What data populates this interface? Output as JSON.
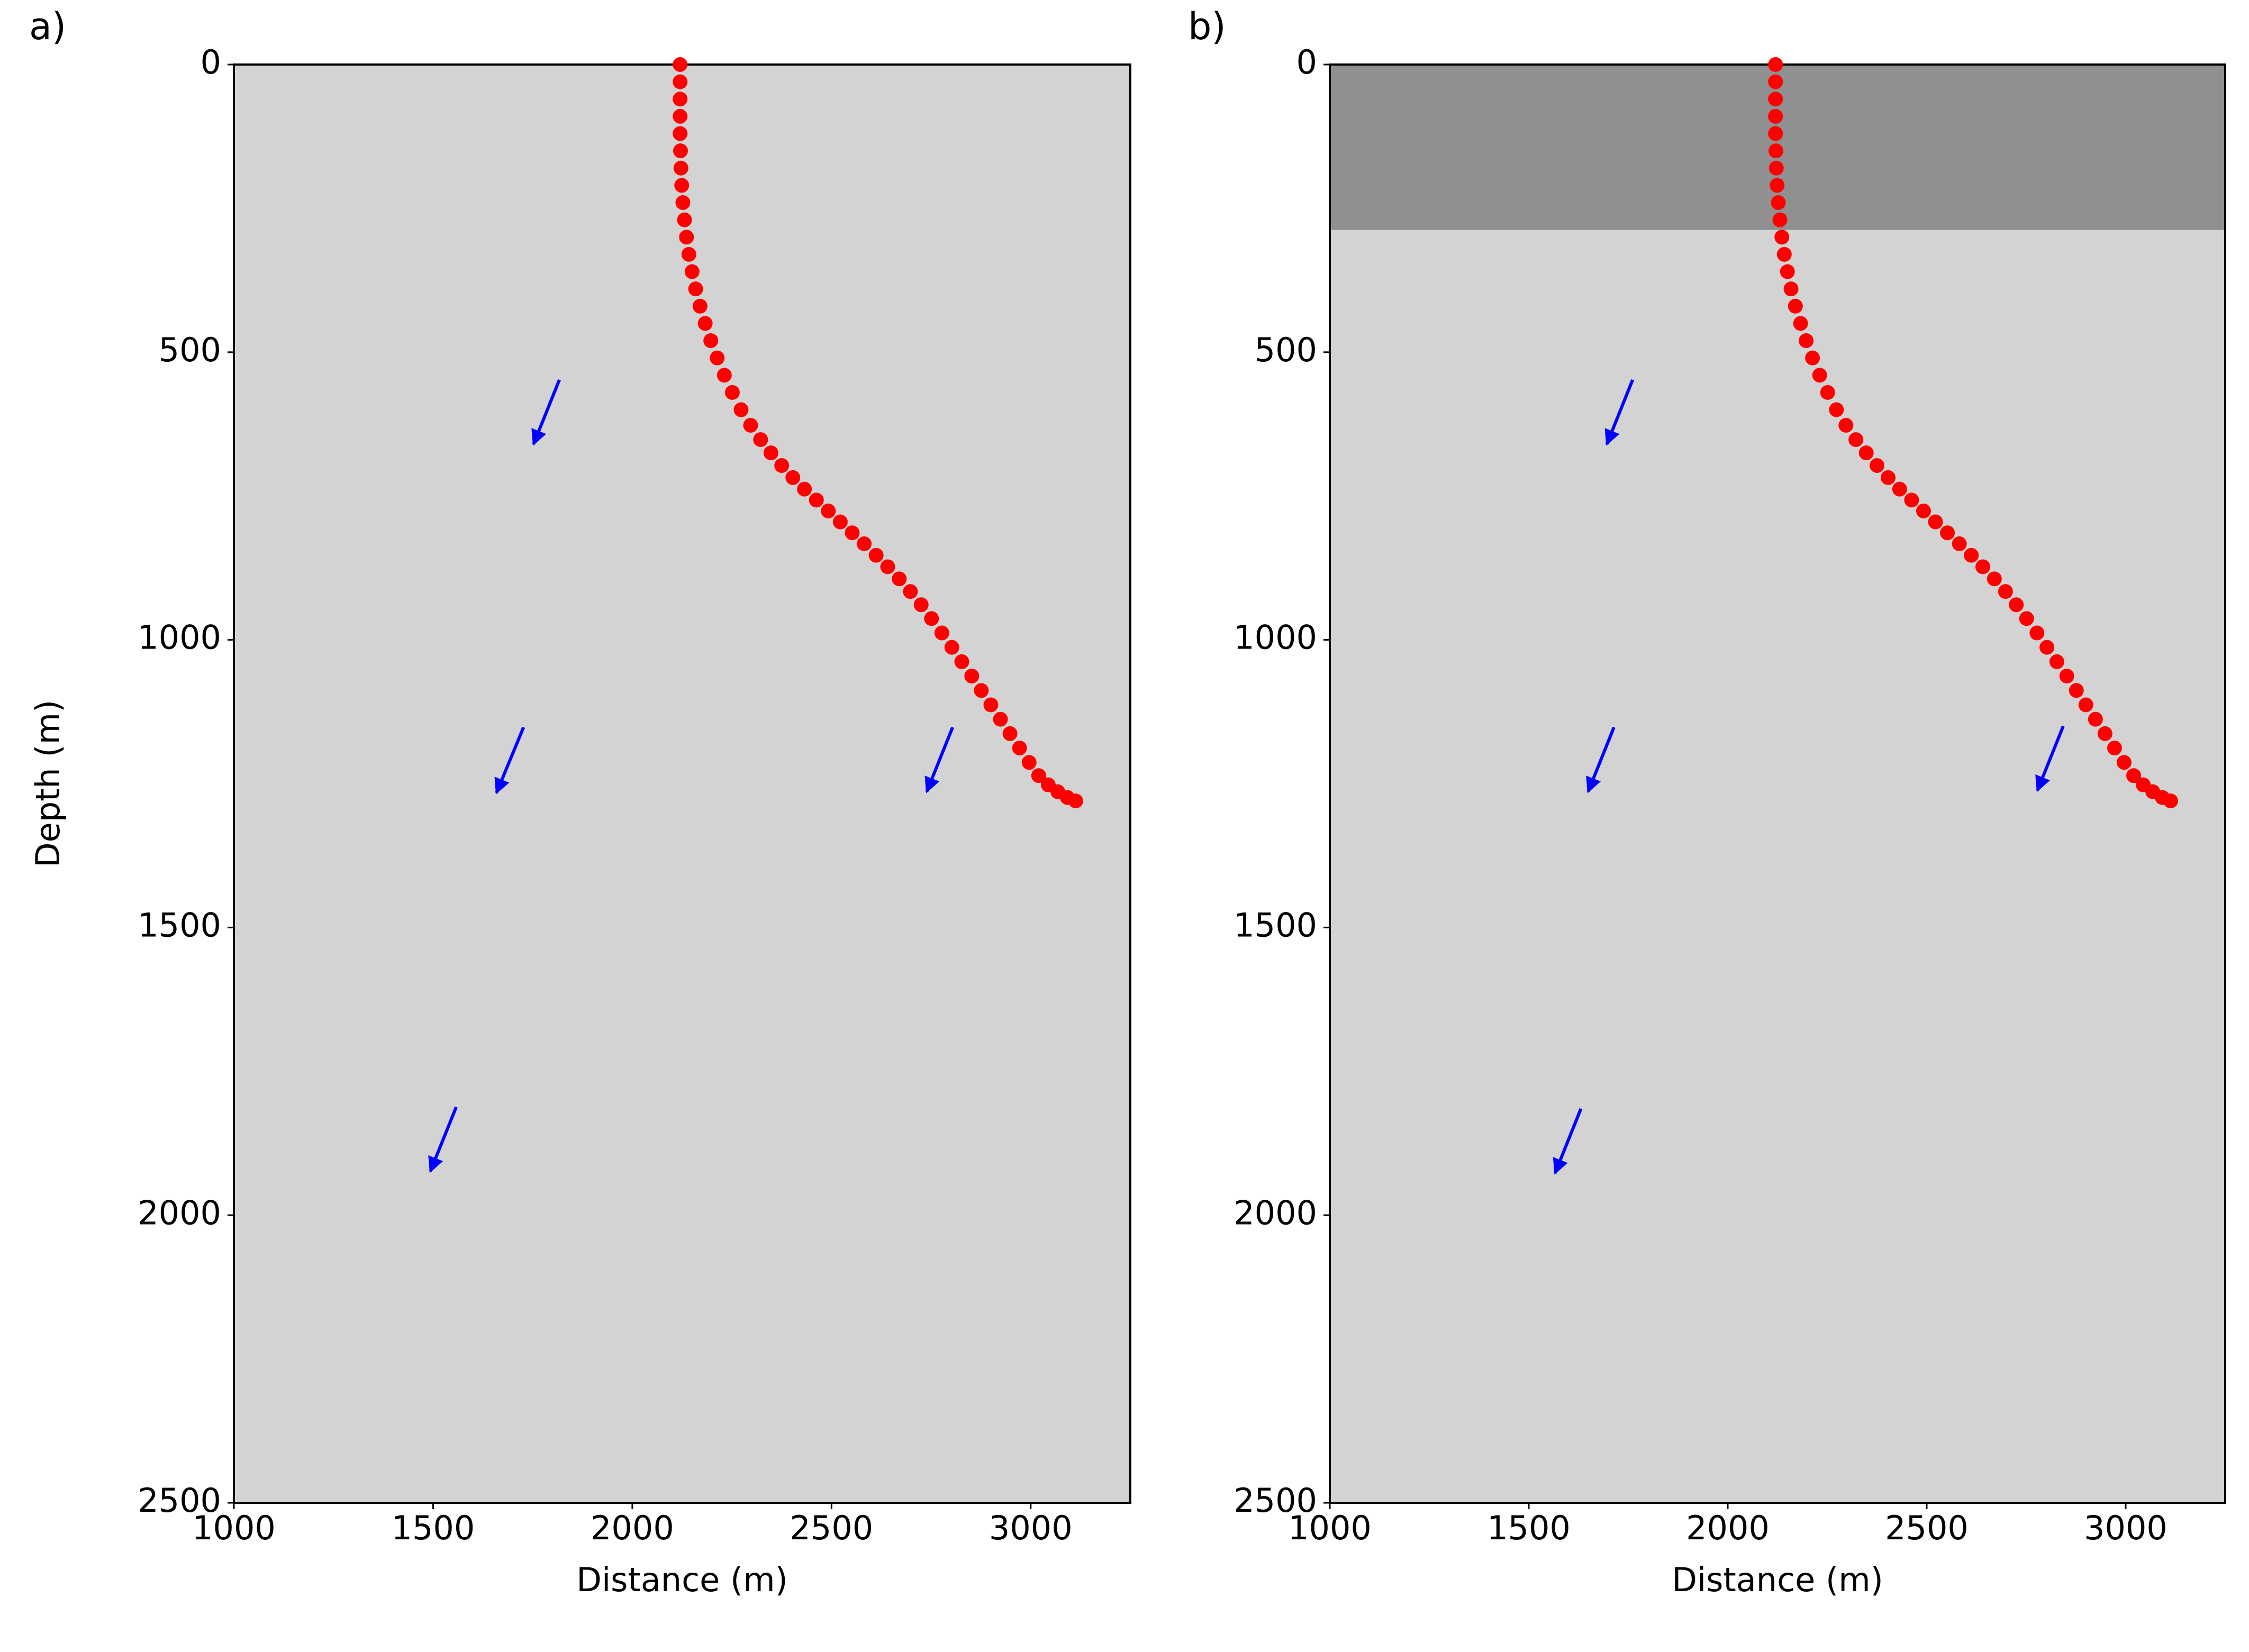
{
  "chart_data": [
    {
      "type": "scatter",
      "panel_label": "a)",
      "xlabel": "Distance (m)",
      "ylabel": "Depth (m)",
      "xlim": [
        1000,
        3250
      ],
      "ylim": [
        2500,
        0
      ],
      "xticks": [
        1000,
        1500,
        2000,
        2500,
        3000
      ],
      "yticks": [
        0,
        500,
        1000,
        1500,
        2000,
        2500
      ],
      "color": "red",
      "x": [
        2120,
        2120,
        2120,
        2120,
        2120,
        2121,
        2122,
        2124,
        2127,
        2131,
        2136,
        2142,
        2150,
        2159,
        2170,
        2183,
        2197,
        2213,
        2231,
        2251,
        2273,
        2297,
        2322,
        2348,
        2375,
        2403,
        2432,
        2462,
        2492,
        2522,
        2552,
        2582,
        2612,
        2641,
        2670,
        2698,
        2725,
        2751,
        2777,
        2802,
        2827,
        2852,
        2876,
        2900,
        2924,
        2948,
        2972,
        2996,
        3020,
        3044,
        3068,
        3092,
        3113
      ],
      "y": [
        0,
        30,
        60,
        90,
        120,
        150,
        180,
        210,
        240,
        270,
        300,
        330,
        360,
        390,
        420,
        450,
        480,
        510,
        540,
        570,
        600,
        627,
        652,
        675,
        697,
        718,
        738,
        757,
        776,
        795,
        814,
        833,
        853,
        873,
        894,
        916,
        939,
        963,
        988,
        1013,
        1038,
        1063,
        1088,
        1113,
        1138,
        1163,
        1188,
        1213,
        1236,
        1252,
        1264,
        1274,
        1280
      ],
      "arrow_color": "blue",
      "arrows": [
        {
          "x": [
            1817,
            1752
          ],
          "y": [
            548,
            660
          ]
        },
        {
          "x": [
            1727,
            1659
          ],
          "y": [
            1152,
            1266
          ]
        },
        {
          "x": [
            2804,
            2739
          ],
          "y": [
            1152,
            1264
          ]
        },
        {
          "x": [
            1558,
            1493
          ],
          "y": [
            1812,
            1924
          ]
        }
      ]
    },
    {
      "type": "scatter",
      "panel_label": "b)",
      "xlabel": "Distance (m)",
      "xlim": [
        1000,
        3250
      ],
      "ylim": [
        2500,
        0
      ],
      "xticks": [
        1000,
        1500,
        2000,
        2500,
        3000
      ],
      "yticks": [
        0,
        500,
        1000,
        1500,
        2000,
        2500
      ],
      "color": "red",
      "x": [
        2120,
        2120,
        2120,
        2120,
        2120,
        2121,
        2122,
        2124,
        2127,
        2131,
        2136,
        2142,
        2150,
        2159,
        2170,
        2183,
        2197,
        2213,
        2231,
        2251,
        2273,
        2297,
        2322,
        2348,
        2375,
        2403,
        2432,
        2462,
        2492,
        2522,
        2552,
        2582,
        2612,
        2641,
        2670,
        2698,
        2725,
        2751,
        2777,
        2802,
        2827,
        2852,
        2876,
        2900,
        2924,
        2948,
        2972,
        2996,
        3020,
        3044,
        3068,
        3092,
        3113
      ],
      "y": [
        0,
        30,
        60,
        90,
        120,
        150,
        180,
        210,
        240,
        270,
        300,
        330,
        360,
        390,
        420,
        450,
        480,
        510,
        540,
        570,
        600,
        627,
        652,
        675,
        697,
        718,
        738,
        757,
        776,
        795,
        814,
        833,
        853,
        873,
        894,
        916,
        939,
        963,
        988,
        1013,
        1038,
        1063,
        1088,
        1113,
        1138,
        1163,
        1188,
        1213,
        1236,
        1252,
        1264,
        1274,
        1280
      ],
      "arrow_color": "blue",
      "arrows": [
        {
          "x": [
            1761,
            1696
          ],
          "y": [
            548,
            660
          ]
        },
        {
          "x": [
            1714,
            1649
          ],
          "y": [
            1152,
            1264
          ]
        },
        {
          "x": [
            2843,
            2778
          ],
          "y": [
            1150,
            1262
          ]
        },
        {
          "x": [
            1631,
            1566
          ],
          "y": [
            1815,
            1927
          ]
        }
      ]
    }
  ]
}
